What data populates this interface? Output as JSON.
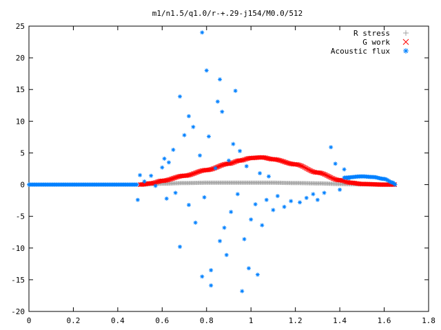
{
  "chart_data": {
    "type": "scatter",
    "title": "m1/n1.5/q1.0/r-+.29-j154/M0.0/512",
    "xlabel": "",
    "ylabel": "",
    "xlim": [
      0,
      1.8
    ],
    "ylim": [
      -20,
      25
    ],
    "x_ticks": [
      "0",
      "0.2",
      "0.4",
      "0.6",
      "0.8",
      "1",
      "1.2",
      "1.4",
      "1.6",
      "1.8"
    ],
    "y_ticks": [
      "25",
      "20",
      "15",
      "10",
      "5",
      "0",
      "-5",
      "-10",
      "-15",
      "-20"
    ],
    "grid": false,
    "legend_position": "top-right",
    "series": [
      {
        "name": "R stress",
        "marker": "+",
        "color": "#a0a0a0",
        "curve": [
          [
            0.5,
            0.0
          ],
          [
            0.6,
            0.15
          ],
          [
            0.7,
            0.25
          ],
          [
            0.8,
            0.3
          ],
          [
            0.9,
            0.3
          ],
          [
            1.0,
            0.3
          ],
          [
            1.1,
            0.3
          ],
          [
            1.2,
            0.25
          ],
          [
            1.3,
            0.2
          ],
          [
            1.4,
            0.1
          ],
          [
            1.5,
            0.05
          ],
          [
            1.6,
            0.0
          ],
          [
            1.65,
            0.0
          ]
        ]
      },
      {
        "name": "G work",
        "marker": "x",
        "color": "#ff0000",
        "curve": [
          [
            0.5,
            0.0
          ],
          [
            0.55,
            0.2
          ],
          [
            0.6,
            0.6
          ],
          [
            0.7,
            1.4
          ],
          [
            0.8,
            2.3
          ],
          [
            0.9,
            3.3
          ],
          [
            0.95,
            3.8
          ],
          [
            1.0,
            4.2
          ],
          [
            1.05,
            4.3
          ],
          [
            1.1,
            4.0
          ],
          [
            1.2,
            3.2
          ],
          [
            1.3,
            1.9
          ],
          [
            1.4,
            0.7
          ],
          [
            1.45,
            0.3
          ],
          [
            1.5,
            0.1
          ],
          [
            1.6,
            0.0
          ],
          [
            1.65,
            0.0
          ]
        ]
      },
      {
        "name": "Acoustic flux",
        "marker": "*",
        "color": "#0080ff",
        "baseline": [
          [
            0.0,
            0.0
          ],
          [
            0.49,
            0.0
          ]
        ],
        "tail": [
          [
            1.42,
            1.1
          ],
          [
            1.5,
            1.3
          ],
          [
            1.55,
            1.2
          ],
          [
            1.6,
            0.9
          ],
          [
            1.64,
            0.3
          ],
          [
            1.65,
            0.0
          ]
        ],
        "scatter": [
          [
            0.49,
            -2.4
          ],
          [
            0.5,
            1.5
          ],
          [
            0.52,
            0.5
          ],
          [
            0.55,
            1.4
          ],
          [
            0.57,
            -0.2
          ],
          [
            0.6,
            2.7
          ],
          [
            0.61,
            4.1
          ],
          [
            0.62,
            -2.2
          ],
          [
            0.63,
            3.5
          ],
          [
            0.65,
            5.5
          ],
          [
            0.66,
            -1.3
          ],
          [
            0.68,
            13.9
          ],
          [
            0.68,
            -9.8
          ],
          [
            0.7,
            7.8
          ],
          [
            0.72,
            10.8
          ],
          [
            0.72,
            -3.2
          ],
          [
            0.74,
            9.1
          ],
          [
            0.75,
            -6.0
          ],
          [
            0.77,
            4.6
          ],
          [
            0.78,
            24.0
          ],
          [
            0.78,
            -14.5
          ],
          [
            0.79,
            -2.0
          ],
          [
            0.8,
            18.0
          ],
          [
            0.81,
            7.6
          ],
          [
            0.82,
            -13.5
          ],
          [
            0.82,
            -15.9
          ],
          [
            0.84,
            2.6
          ],
          [
            0.85,
            13.1
          ],
          [
            0.86,
            16.6
          ],
          [
            0.86,
            -8.9
          ],
          [
            0.87,
            11.5
          ],
          [
            0.88,
            -6.8
          ],
          [
            0.89,
            -11.1
          ],
          [
            0.9,
            3.8
          ],
          [
            0.91,
            -4.3
          ],
          [
            0.92,
            6.4
          ],
          [
            0.93,
            14.8
          ],
          [
            0.94,
            -1.5
          ],
          [
            0.95,
            5.3
          ],
          [
            0.96,
            -16.8
          ],
          [
            0.97,
            -8.6
          ],
          [
            0.98,
            2.9
          ],
          [
            0.99,
            -13.2
          ],
          [
            1.0,
            -5.5
          ],
          [
            1.02,
            -3.1
          ],
          [
            1.03,
            -14.2
          ],
          [
            1.04,
            1.8
          ],
          [
            1.05,
            -6.4
          ],
          [
            1.07,
            -2.4
          ],
          [
            1.08,
            1.3
          ],
          [
            1.1,
            -4.0
          ],
          [
            1.12,
            -1.8
          ],
          [
            1.15,
            -3.5
          ],
          [
            1.18,
            -2.6
          ],
          [
            1.22,
            -2.8
          ],
          [
            1.25,
            -2.1
          ],
          [
            1.28,
            -1.5
          ],
          [
            1.3,
            -2.4
          ],
          [
            1.33,
            -1.3
          ],
          [
            1.36,
            5.9
          ],
          [
            1.38,
            3.3
          ],
          [
            1.4,
            -0.8
          ],
          [
            1.42,
            2.4
          ],
          [
            1.44,
            1.0
          ]
        ]
      }
    ]
  }
}
